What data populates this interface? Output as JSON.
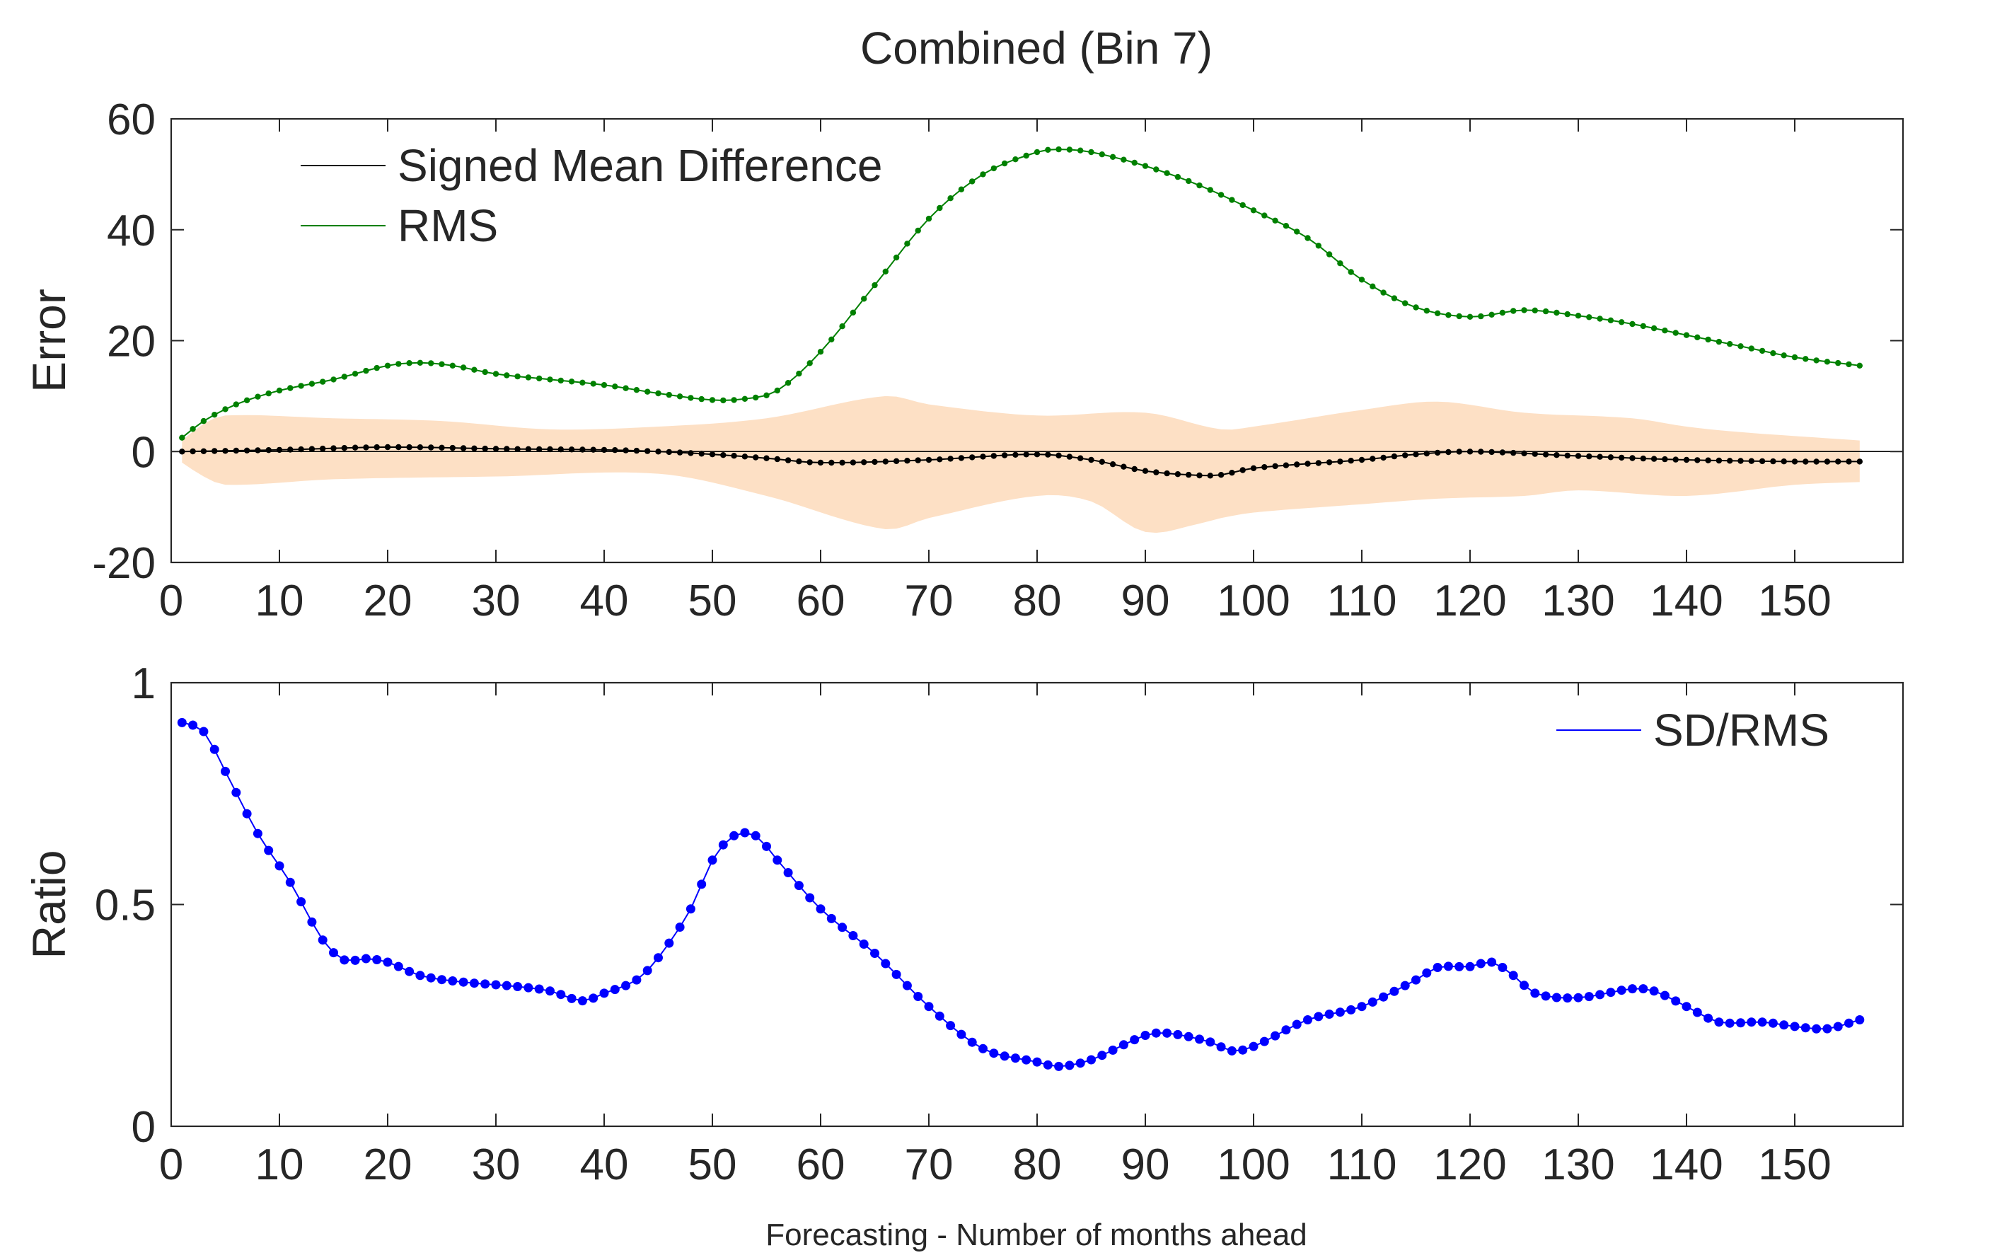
{
  "figure": {
    "title": "Combined (Bin 7)",
    "xlabel": "Forecasting - Number of months ahead"
  },
  "colors": {
    "smd": "#000000",
    "rms": "#008000",
    "ratio": "#0000ff",
    "band": "#fde0c5",
    "axis": "#262626"
  },
  "chart_data": [
    {
      "type": "line",
      "title": "Combined (Bin 7)",
      "xlabel": "",
      "ylabel": "Error",
      "xlim": [
        0,
        160
      ],
      "ylim": [
        -20,
        60
      ],
      "xticks": [
        0,
        10,
        20,
        30,
        40,
        50,
        60,
        70,
        80,
        90,
        100,
        110,
        120,
        130,
        140,
        150
      ],
      "yticks": [
        -20,
        0,
        20,
        40,
        60
      ],
      "legend": {
        "position": "top-left",
        "entries": [
          "Signed Mean Difference",
          "RMS"
        ]
      },
      "x_range": [
        1,
        156
      ],
      "series": [
        {
          "name": "Signed Mean Difference",
          "color": "#000000",
          "knots": [
            [
              1,
              0
            ],
            [
              10,
              0.3
            ],
            [
              20,
              0.8
            ],
            [
              30,
              0.5
            ],
            [
              40,
              0.3
            ],
            [
              45,
              0
            ],
            [
              50,
              -0.5
            ],
            [
              55,
              -1.2
            ],
            [
              60,
              -2
            ],
            [
              70,
              -1.5
            ],
            [
              80,
              -0.5
            ],
            [
              85,
              -1.5
            ],
            [
              90,
              -3.5
            ],
            [
              95,
              -4.3
            ],
            [
              97,
              -4.2
            ],
            [
              100,
              -3
            ],
            [
              110,
              -1.5
            ],
            [
              115,
              -0.5
            ],
            [
              120,
              0
            ],
            [
              130,
              -0.8
            ],
            [
              140,
              -1.5
            ],
            [
              150,
              -1.8
            ],
            [
              156,
              -1.8
            ]
          ]
        },
        {
          "name": "RMS",
          "color": "#008000",
          "knots": [
            [
              1,
              2.5
            ],
            [
              3,
              5.5
            ],
            [
              6,
              8.5
            ],
            [
              10,
              11
            ],
            [
              15,
              13
            ],
            [
              20,
              15.5
            ],
            [
              23,
              16
            ],
            [
              26,
              15.5
            ],
            [
              30,
              14
            ],
            [
              35,
              13
            ],
            [
              40,
              12
            ],
            [
              45,
              10.5
            ],
            [
              50,
              9.3
            ],
            [
              53,
              9.5
            ],
            [
              56,
              11
            ],
            [
              60,
              18
            ],
            [
              65,
              30
            ],
            [
              70,
              42
            ],
            [
              75,
              50
            ],
            [
              80,
              54
            ],
            [
              82,
              54.5
            ],
            [
              85,
              54
            ],
            [
              90,
              51.5
            ],
            [
              95,
              48
            ],
            [
              100,
              43.5
            ],
            [
              105,
              38.5
            ],
            [
              110,
              31
            ],
            [
              115,
              26
            ],
            [
              120,
              24.3
            ],
            [
              125,
              25.5
            ],
            [
              130,
              24.5
            ],
            [
              135,
              23
            ],
            [
              140,
              21
            ],
            [
              145,
              19
            ],
            [
              150,
              17
            ],
            [
              156,
              15.5
            ]
          ]
        }
      ],
      "band": {
        "name": "SD band",
        "upper_knots": [
          [
            1,
            2
          ],
          [
            3,
            5
          ],
          [
            5,
            6.5
          ],
          [
            15,
            6
          ],
          [
            25,
            5.5
          ],
          [
            35,
            4
          ],
          [
            45,
            4.5
          ],
          [
            55,
            6
          ],
          [
            66,
            10
          ],
          [
            70,
            8.5
          ],
          [
            80,
            6.5
          ],
          [
            90,
            7
          ],
          [
            97,
            4
          ],
          [
            100,
            4.5
          ],
          [
            110,
            7.5
          ],
          [
            117,
            9
          ],
          [
            125,
            7
          ],
          [
            135,
            6
          ],
          [
            140,
            4.5
          ],
          [
            145,
            3.5
          ],
          [
            156,
            2
          ]
        ],
        "lower_knots": [
          [
            1,
            -2
          ],
          [
            3,
            -4.5
          ],
          [
            5,
            -6
          ],
          [
            15,
            -5
          ],
          [
            30,
            -4.5
          ],
          [
            45,
            -4
          ],
          [
            55,
            -8
          ],
          [
            66,
            -14
          ],
          [
            70,
            -12
          ],
          [
            80,
            -8
          ],
          [
            85,
            -9
          ],
          [
            90,
            -14.5
          ],
          [
            95,
            -13
          ],
          [
            97,
            -12
          ],
          [
            100,
            -11
          ],
          [
            110,
            -9.5
          ],
          [
            117,
            -8.5
          ],
          [
            125,
            -8
          ],
          [
            130,
            -7
          ],
          [
            140,
            -8
          ],
          [
            150,
            -6
          ],
          [
            156,
            -5.5
          ]
        ]
      }
    },
    {
      "type": "line",
      "title": "",
      "xlabel": "Forecasting - Number of months ahead",
      "ylabel": "Ratio",
      "xlim": [
        0,
        160
      ],
      "ylim": [
        0,
        1
      ],
      "xticks": [
        0,
        10,
        20,
        30,
        40,
        50,
        60,
        70,
        80,
        90,
        100,
        110,
        120,
        130,
        140,
        150
      ],
      "yticks": [
        0,
        0.5,
        1
      ],
      "legend": {
        "position": "top-right",
        "entries": [
          "SD/RMS"
        ]
      },
      "x_range": [
        1,
        156
      ],
      "series": [
        {
          "name": "SD/RMS",
          "color": "#0000ff",
          "knots": [
            [
              1,
              0.91
            ],
            [
              3,
              0.89
            ],
            [
              5,
              0.8
            ],
            [
              8,
              0.66
            ],
            [
              11,
              0.55
            ],
            [
              14,
              0.42
            ],
            [
              16,
              0.375
            ],
            [
              18,
              0.378
            ],
            [
              20,
              0.37
            ],
            [
              23,
              0.34
            ],
            [
              27,
              0.325
            ],
            [
              32,
              0.315
            ],
            [
              35,
              0.305
            ],
            [
              38,
              0.283
            ],
            [
              40,
              0.3
            ],
            [
              43,
              0.33
            ],
            [
              45,
              0.38
            ],
            [
              48,
              0.49
            ],
            [
              50,
              0.6
            ],
            [
              52,
              0.655
            ],
            [
              54,
              0.655
            ],
            [
              56,
              0.6
            ],
            [
              60,
              0.49
            ],
            [
              65,
              0.39
            ],
            [
              70,
              0.27
            ],
            [
              75,
              0.175
            ],
            [
              80,
              0.145
            ],
            [
              82,
              0.135
            ],
            [
              85,
              0.15
            ],
            [
              90,
              0.205
            ],
            [
              92,
              0.21
            ],
            [
              96,
              0.19
            ],
            [
              98,
              0.17
            ],
            [
              100,
              0.18
            ],
            [
              105,
              0.24
            ],
            [
              110,
              0.27
            ],
            [
              115,
              0.33
            ],
            [
              117,
              0.358
            ],
            [
              120,
              0.36
            ],
            [
              122,
              0.37
            ],
            [
              124,
              0.34
            ],
            [
              126,
              0.3
            ],
            [
              130,
              0.29
            ],
            [
              135,
              0.31
            ],
            [
              137,
              0.305
            ],
            [
              140,
              0.27
            ],
            [
              143,
              0.235
            ],
            [
              147,
              0.235
            ],
            [
              150,
              0.225
            ],
            [
              153,
              0.22
            ],
            [
              156,
              0.24
            ]
          ]
        }
      ]
    }
  ]
}
